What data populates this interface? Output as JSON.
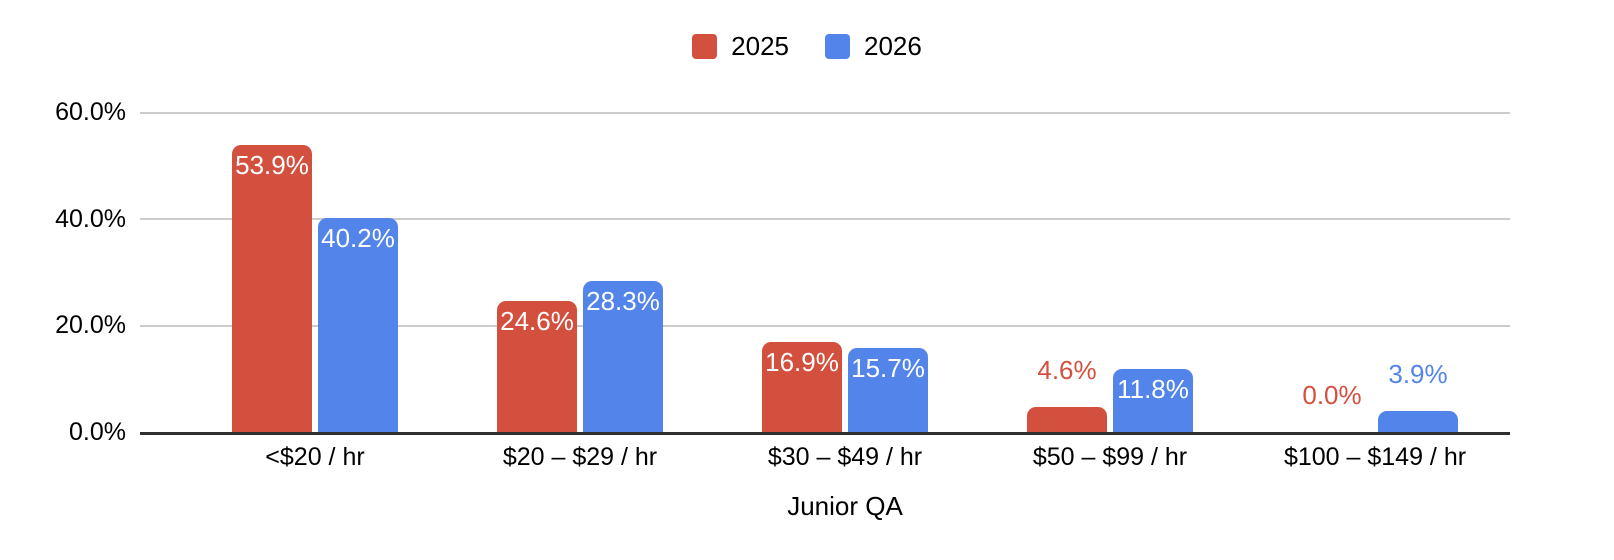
{
  "chart_data": {
    "type": "bar",
    "title": "",
    "categories": [
      "<$20 / hr",
      "$20 – $29 / hr",
      "$30 – $49 / hr",
      "$50 – $99 / hr",
      "$100 – $149 / hr"
    ],
    "series": [
      {
        "name": "2025",
        "color": "#D3503E",
        "values": [
          53.9,
          24.6,
          16.9,
          4.6,
          0.0
        ],
        "value_labels": [
          "53.9%",
          "24.6%",
          "16.9%",
          "4.6%",
          "0.0%"
        ]
      },
      {
        "name": "2026",
        "color": "#5284E9",
        "values": [
          40.2,
          28.3,
          15.7,
          11.8,
          3.9
        ],
        "value_labels": [
          "40.2%",
          "28.3%",
          "15.7%",
          "11.8%",
          "3.9%"
        ]
      }
    ],
    "xlabel": "Junior QA",
    "ylabel": "",
    "ylim": [
      0,
      60
    ],
    "y_ticks": [
      0,
      20,
      40,
      60
    ],
    "y_tick_labels": [
      "0.0%",
      "20.0%",
      "40.0%",
      "60.0%"
    ],
    "grid": true,
    "legend_position": "top"
  },
  "colors": {
    "series_2025": "#D3503E",
    "series_2026": "#5284E9",
    "gridline": "#CCCCCC",
    "axis_line": "#2F2F2F",
    "text": "#000000",
    "background": "#FFFFFF",
    "bar_label_inside": "#FFFFFF"
  }
}
